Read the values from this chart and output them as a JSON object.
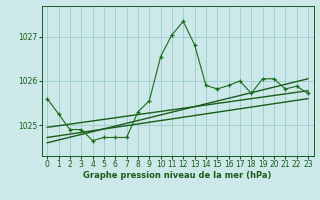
{
  "title": "Graphe pression niveau de la mer (hPa)",
  "bg_color": "#cce8e8",
  "grid_color": "#99cccc",
  "line_color": "#1a5c1a",
  "line_color2": "#1a6b1a",
  "x_ticks": [
    0,
    1,
    2,
    3,
    4,
    5,
    6,
    7,
    8,
    9,
    10,
    11,
    12,
    13,
    14,
    15,
    16,
    17,
    18,
    19,
    20,
    21,
    22,
    23
  ],
  "xlim": [
    -0.5,
    23.5
  ],
  "ylim": [
    1024.3,
    1027.7
  ],
  "yticks": [
    1025,
    1026,
    1027
  ],
  "main_data": [
    1025.6,
    1025.25,
    1024.9,
    1024.9,
    1024.65,
    1024.72,
    1024.72,
    1024.72,
    1025.3,
    1025.55,
    1026.55,
    1027.05,
    1027.35,
    1026.82,
    1025.9,
    1025.82,
    1025.9,
    1026.0,
    1025.72,
    1026.05,
    1026.05,
    1025.82,
    1025.88,
    1025.72
  ],
  "trend1_x": [
    0,
    23
  ],
  "trend1_y": [
    1024.95,
    1025.78
  ],
  "trend2_x": [
    0,
    23
  ],
  "trend2_y": [
    1024.72,
    1025.6
  ],
  "trend3_x": [
    0,
    23
  ],
  "trend3_y": [
    1024.6,
    1026.05
  ]
}
